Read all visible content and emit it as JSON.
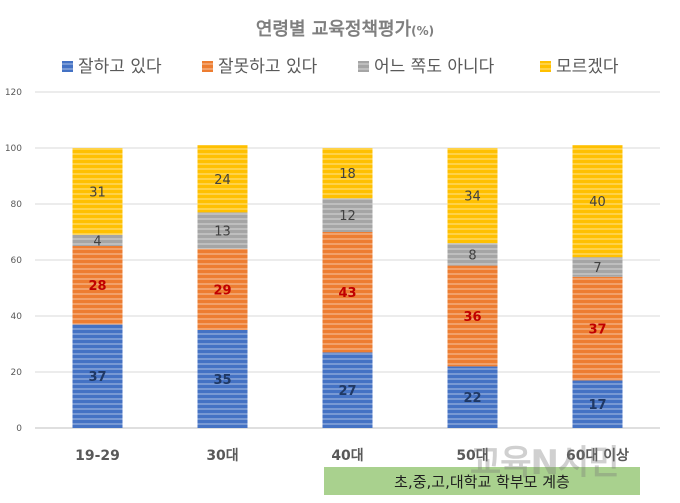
{
  "chart_data": {
    "type": "bar",
    "stacked": true,
    "title": "연령별 교육정책평가",
    "title_unit": "(%)",
    "categories": [
      "19-29",
      "30대",
      "40대",
      "50대",
      "60대 이상"
    ],
    "ylim": [
      0,
      120
    ],
    "yticks": [
      0,
      20,
      40,
      60,
      80,
      100,
      120
    ],
    "grid": true,
    "legend_position": "top",
    "series": [
      {
        "name": "잘하고 있다",
        "values": [
          37,
          35,
          27,
          22,
          17
        ],
        "color": "#4472c4",
        "label_color": "#1f3864"
      },
      {
        "name": "잘못하고 있다",
        "values": [
          28,
          29,
          43,
          36,
          37
        ],
        "color": "#ed7d31",
        "label_color": "#c00000"
      },
      {
        "name": "어느 쪽도 아니다",
        "values": [
          4,
          13,
          12,
          8,
          7
        ],
        "color": "#a5a5a5",
        "label_color": "#404040"
      },
      {
        "name": "모르겠다",
        "values": [
          31,
          24,
          18,
          34,
          40
        ],
        "color": "#ffc000",
        "label_color": "#404040"
      }
    ]
  },
  "footer_note": "초,중,고,대학교 학부모 계층",
  "watermark": "교육N시민"
}
